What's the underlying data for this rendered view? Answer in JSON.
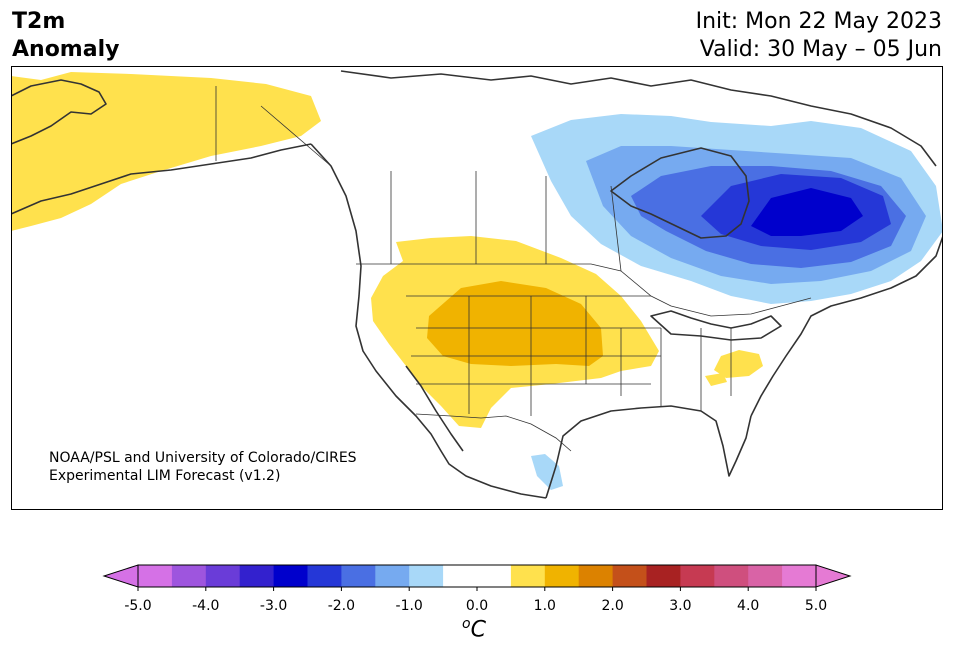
{
  "header": {
    "title_line1": "T2m",
    "title_line2": "Anomaly",
    "init_text": "Init: Mon 22 May 2023",
    "valid_text": "Valid: 30 May – 05 Jun"
  },
  "credit": {
    "line1": "NOAA/PSL and University of Colorado/CIRES",
    "line2": "Experimental LIM Forecast (v1.2)"
  },
  "colorbar": {
    "unit_main": "C",
    "unit_sup": "o",
    "colors": [
      "#d571e6",
      "#9e55de",
      "#6a3cd8",
      "#3321ce",
      "#0000cc",
      "#2537d7",
      "#4a6fe3",
      "#76aaf0",
      "#a8d8f8",
      "#ffffff",
      "#ffffff",
      "#ffe14d",
      "#f0b300",
      "#dc8200",
      "#c4501a",
      "#a82222",
      "#c63a52",
      "#cf4f7e",
      "#d963a6",
      "#e57ad4"
    ],
    "extend_min_color": "#d571e6",
    "extend_max_color": "#e57ad4",
    "ticks": [
      "-5.0",
      "-4.0",
      "-3.0",
      "-2.0",
      "-1.0",
      "0.0",
      "1.0",
      "2.0",
      "3.0",
      "4.0",
      "5.0"
    ]
  },
  "map": {
    "anomaly_regions": [
      {
        "name": "alaska-yukon",
        "value_range": "0.5 to 1.0",
        "color": "#ffe14d"
      },
      {
        "name": "western-us-plains",
        "value_range": "0.5 to 1.0",
        "color": "#ffe14d"
      },
      {
        "name": "central-rockies-plains",
        "value_range": "1.0 to 1.5",
        "color": "#f0b300"
      },
      {
        "name": "mid-atlantic",
        "value_range": "0.5 to 1.0",
        "color": "#ffe14d"
      },
      {
        "name": "hudson-bay-quebec",
        "value_range": "-3.0 to -0.5",
        "color": "#0000cc"
      },
      {
        "name": "western-mexico",
        "value_range": "-1.0 to -0.5",
        "color": "#a8d8f8"
      }
    ]
  }
}
